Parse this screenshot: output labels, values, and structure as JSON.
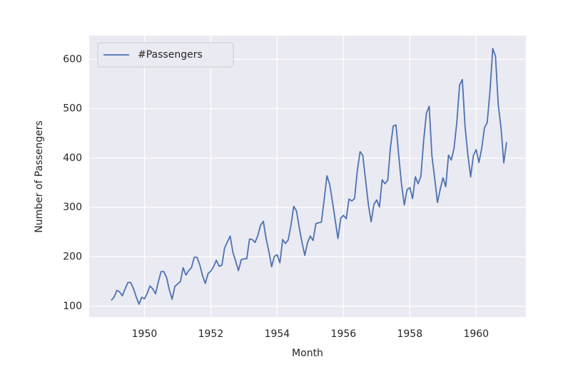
{
  "chart_data": {
    "type": "line",
    "x_label": "Month",
    "y_label": "Number of Passengers",
    "x": [
      "1949-01",
      "1949-02",
      "1949-03",
      "1949-04",
      "1949-05",
      "1949-06",
      "1949-07",
      "1949-08",
      "1949-09",
      "1949-10",
      "1949-11",
      "1949-12",
      "1950-01",
      "1950-02",
      "1950-03",
      "1950-04",
      "1950-05",
      "1950-06",
      "1950-07",
      "1950-08",
      "1950-09",
      "1950-10",
      "1950-11",
      "1950-12",
      "1951-01",
      "1951-02",
      "1951-03",
      "1951-04",
      "1951-05",
      "1951-06",
      "1951-07",
      "1951-08",
      "1951-09",
      "1951-10",
      "1951-11",
      "1951-12",
      "1952-01",
      "1952-02",
      "1952-03",
      "1952-04",
      "1952-05",
      "1952-06",
      "1952-07",
      "1952-08",
      "1952-09",
      "1952-10",
      "1952-11",
      "1952-12",
      "1953-01",
      "1953-02",
      "1953-03",
      "1953-04",
      "1953-05",
      "1953-06",
      "1953-07",
      "1953-08",
      "1953-09",
      "1953-10",
      "1953-11",
      "1953-12",
      "1954-01",
      "1954-02",
      "1954-03",
      "1954-04",
      "1954-05",
      "1954-06",
      "1954-07",
      "1954-08",
      "1954-09",
      "1954-10",
      "1954-11",
      "1954-12",
      "1955-01",
      "1955-02",
      "1955-03",
      "1955-04",
      "1955-05",
      "1955-06",
      "1955-07",
      "1955-08",
      "1955-09",
      "1955-10",
      "1955-11",
      "1955-12",
      "1956-01",
      "1956-02",
      "1956-03",
      "1956-04",
      "1956-05",
      "1956-06",
      "1956-07",
      "1956-08",
      "1956-09",
      "1956-10",
      "1956-11",
      "1956-12",
      "1957-01",
      "1957-02",
      "1957-03",
      "1957-04",
      "1957-05",
      "1957-06",
      "1957-07",
      "1957-08",
      "1957-09",
      "1957-10",
      "1957-11",
      "1957-12",
      "1958-01",
      "1958-02",
      "1958-03",
      "1958-04",
      "1958-05",
      "1958-06",
      "1958-07",
      "1958-08",
      "1958-09",
      "1958-10",
      "1958-11",
      "1958-12",
      "1959-01",
      "1959-02",
      "1959-03",
      "1959-04",
      "1959-05",
      "1959-06",
      "1959-07",
      "1959-08",
      "1959-09",
      "1959-10",
      "1959-11",
      "1959-12",
      "1960-01",
      "1960-02",
      "1960-03",
      "1960-04",
      "1960-05",
      "1960-06",
      "1960-07",
      "1960-08",
      "1960-09",
      "1960-10",
      "1960-11",
      "1960-12"
    ],
    "series": [
      {
        "name": "#Passengers",
        "color": "#4c72b0",
        "values": [
          112,
          118,
          132,
          129,
          121,
          135,
          148,
          148,
          136,
          119,
          104,
          118,
          115,
          126,
          141,
          135,
          125,
          149,
          170,
          170,
          158,
          133,
          114,
          140,
          145,
          150,
          178,
          163,
          172,
          178,
          199,
          199,
          184,
          162,
          146,
          166,
          171,
          180,
          193,
          181,
          183,
          218,
          230,
          242,
          209,
          191,
          172,
          194,
          196,
          196,
          236,
          235,
          229,
          243,
          264,
          272,
          237,
          211,
          180,
          201,
          204,
          188,
          235,
          227,
          234,
          264,
          302,
          293,
          259,
          229,
          203,
          229,
          242,
          233,
          267,
          269,
          270,
          315,
          364,
          347,
          312,
          274,
          237,
          278,
          284,
          277,
          317,
          313,
          318,
          374,
          413,
          405,
          355,
          306,
          271,
          306,
          315,
          301,
          356,
          348,
          355,
          422,
          465,
          467,
          404,
          347,
          305,
          336,
          340,
          318,
          362,
          348,
          363,
          435,
          491,
          505,
          404,
          359,
          310,
          337,
          360,
          342,
          406,
          396,
          420,
          472,
          548,
          559,
          463,
          407,
          362,
          405,
          417,
          391,
          419,
          461,
          472,
          535,
          622,
          606,
          508,
          461,
          390,
          432
        ]
      }
    ],
    "xlim": [
      "1948-05",
      "1961-07"
    ],
    "xticks": [
      "1950",
      "1952",
      "1954",
      "1956",
      "1958",
      "1960"
    ],
    "ylim": [
      78,
      648
    ],
    "yticks": [
      100,
      200,
      300,
      400,
      500,
      600
    ],
    "grid": true,
    "legend": "upper left"
  }
}
